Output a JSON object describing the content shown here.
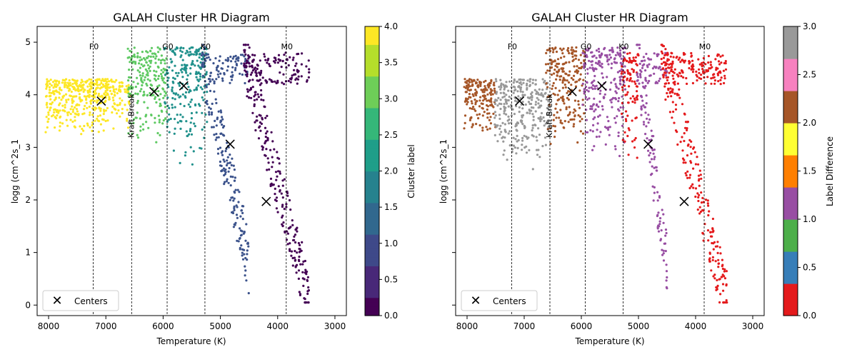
{
  "chart_data": [
    {
      "type": "scatter",
      "title": "GALAH Cluster HR Diagram",
      "xlabel": "Temperature (K)",
      "ylabel": "logg (cm^2s_1",
      "xlim": [
        8200,
        2800
      ],
      "ylim": [
        -0.2,
        5.3
      ],
      "x_ticks": [
        8000,
        7000,
        6000,
        5000,
        4000,
        3000
      ],
      "y_ticks": [
        0,
        1,
        2,
        3,
        4,
        5
      ],
      "grid": false,
      "legend": {
        "location": "lower-left",
        "entries": [
          "Centers"
        ]
      },
      "colorbar": {
        "label": "Cluster label",
        "colormap": "viridis",
        "range": [
          0,
          4
        ],
        "ticks": [
          0.0,
          0.5,
          1.0,
          1.5,
          2.0,
          2.5,
          3.0,
          3.5,
          4.0
        ]
      },
      "spectral_lines": [
        {
          "label": "F0",
          "x": 7220
        },
        {
          "label": "",
          "x": 6550
        },
        {
          "label": "G0",
          "x": 5930
        },
        {
          "label": "K0",
          "x": 5270
        },
        {
          "label": "M0",
          "x": 3850
        }
      ],
      "annotation": {
        "text": "Kraft Break",
        "x": 6550,
        "y": 3.6
      },
      "clusters": [
        {
          "label": 4,
          "color": "#fde725",
          "region": {
            "t_hot": 8050,
            "t_cool": 6580,
            "g_low": 3.2,
            "g_high": 4.3
          }
        },
        {
          "label": 3,
          "color": "#5ec962",
          "region": {
            "t_hot": 6620,
            "t_cool": 5930,
            "g_low": 3.0,
            "g_high": 4.9
          }
        },
        {
          "label": 2,
          "color": "#21918c",
          "region": {
            "t_hot": 5980,
            "t_cool": 5230,
            "g_low": 2.6,
            "g_high": 4.9
          }
        },
        {
          "label": 1,
          "color": "#3b528b",
          "region": {
            "t_hot": 5330,
            "t_cool": 4500,
            "g_low": 0.8,
            "g_high": 4.8
          }
        },
        {
          "label": 0,
          "color": "#440154",
          "region": {
            "t_hot": 4600,
            "t_cool": 3450,
            "g_low": 0.1,
            "g_high": 4.8
          }
        }
      ],
      "centers": [
        {
          "x": 7080,
          "y": 3.88
        },
        {
          "x": 6160,
          "y": 4.06
        },
        {
          "x": 5640,
          "y": 4.17
        },
        {
          "x": 4830,
          "y": 3.06
        },
        {
          "x": 4200,
          "y": 1.97
        }
      ]
    },
    {
      "type": "scatter",
      "title": "GALAH Cluster HR Diagram",
      "xlabel": "Temperature (K)",
      "ylabel": "logg (cm^2s_1",
      "xlim": [
        8200,
        2800
      ],
      "ylim": [
        -0.2,
        5.3
      ],
      "x_ticks": [
        8000,
        7000,
        6000,
        5000,
        4000,
        3000
      ],
      "y_ticks": [
        0,
        1,
        2,
        3,
        4,
        5
      ],
      "grid": false,
      "legend": {
        "location": "lower-left",
        "entries": [
          "Centers"
        ]
      },
      "colorbar": {
        "label": "Label Difference",
        "colormap": "Set1",
        "range": [
          0,
          3
        ],
        "ticks": [
          0.0,
          0.5,
          1.0,
          1.5,
          2.0,
          2.5,
          3.0
        ],
        "segments": [
          "#e41a1c",
          "#377eb8",
          "#4daf4a",
          "#984ea3",
          "#ff7f00",
          "#ffff33",
          "#a65628",
          "#f781bf",
          "#999999"
        ]
      },
      "spectral_lines": [
        {
          "label": "F0",
          "x": 7220
        },
        {
          "label": "",
          "x": 6550
        },
        {
          "label": "G0",
          "x": 5930
        },
        {
          "label": "K0",
          "x": 5270
        },
        {
          "label": "M0",
          "x": 3850
        }
      ],
      "annotation": {
        "text": "Kraft Break",
        "x": 6550,
        "y": 3.6
      },
      "clusters": [
        {
          "label": 2.0,
          "color": "#a65628",
          "region": {
            "t_hot": 8050,
            "t_cool": 7500,
            "g_low": 3.2,
            "g_high": 4.3
          }
        },
        {
          "label": 3.0,
          "color": "#999999",
          "region": {
            "t_hot": 7520,
            "t_cool": 6580,
            "g_low": 2.4,
            "g_high": 4.3
          }
        },
        {
          "label": 2.0,
          "color": "#a65628",
          "region": {
            "t_hot": 6620,
            "t_cool": 5930,
            "g_low": 2.9,
            "g_high": 4.9
          }
        },
        {
          "label": 1.0,
          "color": "#984ea3",
          "region": {
            "t_hot": 5980,
            "t_cool": 5230,
            "g_low": 2.6,
            "g_high": 4.9
          }
        },
        {
          "label": 0.0,
          "color": "#e41a1c",
          "region": {
            "t_hot": 5300,
            "t_cool": 5000,
            "g_low": 2.5,
            "g_high": 4.8
          }
        },
        {
          "label": 1.0,
          "color": "#984ea3",
          "region": {
            "t_hot": 5030,
            "t_cool": 4500,
            "g_low": 0.8,
            "g_high": 4.8
          }
        },
        {
          "label": 0.0,
          "color": "#e41a1c",
          "region": {
            "t_hot": 4600,
            "t_cool": 3450,
            "g_low": 0.1,
            "g_high": 4.8
          }
        }
      ],
      "centers": [
        {
          "x": 7080,
          "y": 3.88
        },
        {
          "x": 6160,
          "y": 4.06
        },
        {
          "x": 5640,
          "y": 4.17
        },
        {
          "x": 4830,
          "y": 3.06
        },
        {
          "x": 4200,
          "y": 1.97
        }
      ]
    }
  ]
}
